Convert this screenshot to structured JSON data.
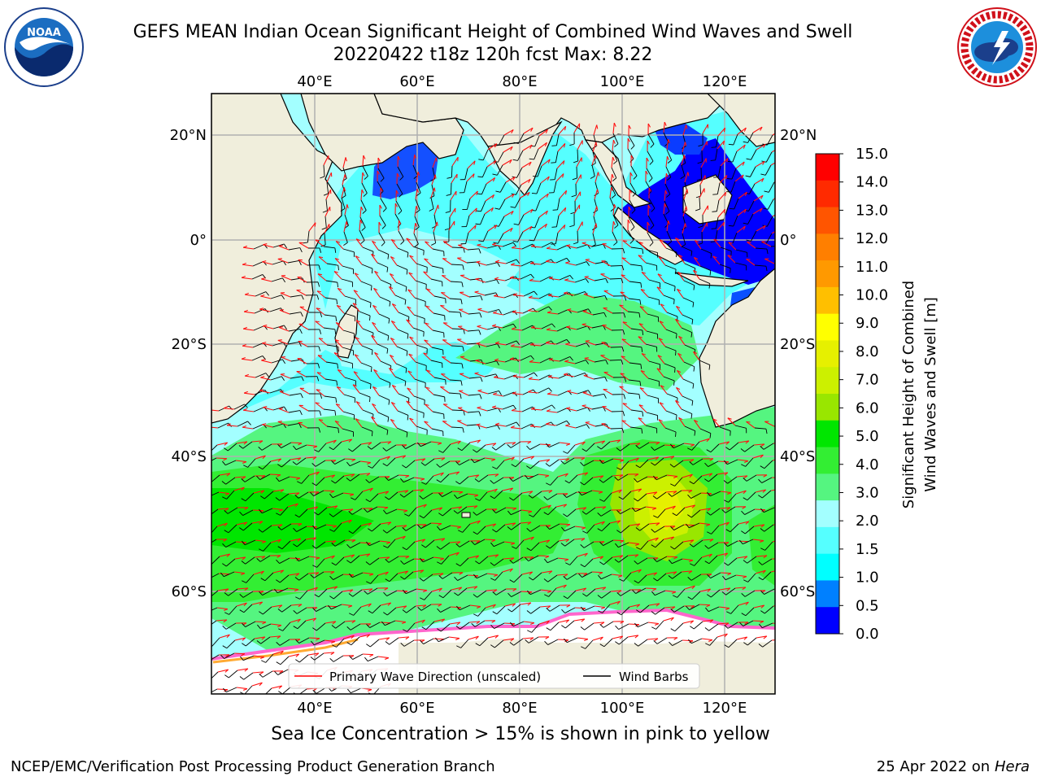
{
  "title_line1": "GEFS MEAN Indian Ocean Significant Height of Combined Wind Waves and Swell",
  "title_line2": "20220422 t18z 120h fcst   Max: 8.22",
  "top_axis_labels": [
    "40°E",
    "60°E",
    "80°E",
    "100°E",
    "120°E"
  ],
  "bottom_axis_labels": [
    "40°E",
    "60°E",
    "80°E",
    "100°E",
    "120°E"
  ],
  "left_axis_labels": [
    "20°N",
    "0°",
    "20°S",
    "40°S",
    "60°S"
  ],
  "right_axis_labels": [
    "20°N",
    "0°",
    "20°S",
    "40°S",
    "60°S"
  ],
  "legend": {
    "wave_direction": "Primary Wave Direction (unscaled)",
    "wind_barbs": "Wind Barbs",
    "wave_direction_color": "#ff0000",
    "wind_barbs_color": "#000000"
  },
  "colorbar": {
    "label_line1": "Significant Height of Combined",
    "label_line2": "Wind Waves and Swell [m]",
    "ticks": [
      "15.0",
      "14.0",
      "13.0",
      "12.0",
      "11.0",
      "10.0",
      "9.0",
      "8.0",
      "7.0",
      "6.0",
      "5.0",
      "4.0",
      "3.0",
      "2.0",
      "1.5",
      "1.0",
      "0.5",
      "0.0"
    ],
    "colors": [
      "#ff0000",
      "#ff2a00",
      "#ff5500",
      "#ff7f00",
      "#ff9900",
      "#ffbf00",
      "#ffff00",
      "#e6f000",
      "#ccf000",
      "#99e600",
      "#00e600",
      "#33ee33",
      "#55f580",
      "#a3ffff",
      "#55ffff",
      "#00ffff",
      "#0080ff",
      "#0000ff"
    ]
  },
  "footer_note": "Sea Ice Concentration > 15% is shown in pink to yellow",
  "footer_left": "NCEP/EMC/Verification Post Processing Product Generation Branch",
  "footer_right_date": "25 Apr 2022 on",
  "footer_right_host": "Hera",
  "logos": {
    "noaa": "NOAA",
    "noaa_ring_text": "NATIONAL OCEANIC AND ATMOSPHERIC ADMINISTRATION · U.S. DEPARTMENT OF COMMERCE",
    "nws_ring_text": "NATIONAL WEATHER SERVICE"
  },
  "map": {
    "max_value": 8.22,
    "land_color": "#f0eedc",
    "sea_ice_color": "#ffffff"
  }
}
